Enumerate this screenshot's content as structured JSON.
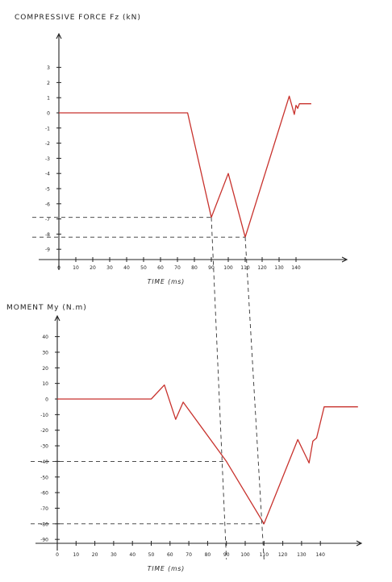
{
  "chart_data": [
    {
      "type": "line",
      "title": "COMPRESSIVE FORCE Fz (kN)",
      "xlabel": "TIME (ms)",
      "ylabel": "",
      "x_ticks": [
        "0",
        "10",
        "20",
        "30",
        "40",
        "50",
        "60",
        "70",
        "80",
        "90",
        "100",
        "110",
        "120",
        "130",
        "140"
      ],
      "y_ticks": [
        "3",
        "2",
        "1",
        "0",
        "-1",
        "-2",
        "-3",
        "-4",
        "-5",
        "-6",
        "-7",
        "-8",
        "-9"
      ],
      "xlim": [
        0,
        150
      ],
      "ylim": [
        -9.5,
        4
      ],
      "series": [
        {
          "color": "#c8322d",
          "x": [
            0,
            76,
            90,
            100,
            110,
            136,
            139,
            140,
            141,
            142,
            149
          ],
          "y": [
            0,
            0,
            -6.9,
            -4.0,
            -8.2,
            1.1,
            -0.1,
            0.5,
            0.3,
            0.6,
            0.6
          ]
        }
      ],
      "guides": [
        {
          "y": -6.9,
          "x": 90
        },
        {
          "y": -8.2,
          "x": 110
        }
      ],
      "grid": false,
      "legend": "none"
    },
    {
      "type": "line",
      "title": "MOMENT My (N.m)",
      "xlabel": "TIME (ms)",
      "ylabel": "",
      "x_ticks": [
        "0",
        "10",
        "20",
        "30",
        "40",
        "50",
        "60",
        "70",
        "80",
        "90",
        "100",
        "110",
        "120",
        "130",
        "140"
      ],
      "y_ticks": [
        "40",
        "30",
        "20",
        "10",
        "0",
        "-10",
        "-20",
        "-30",
        "-40",
        "-50",
        "-60",
        "-70",
        "-80",
        "-90"
      ],
      "xlim": [
        0,
        160
      ],
      "ylim": [
        -95,
        48
      ],
      "series": [
        {
          "color": "#c8322d",
          "x": [
            0,
            50,
            57,
            63,
            67,
            90,
            110,
            128,
            134,
            136,
            138,
            142,
            160
          ],
          "y": [
            0,
            0,
            9,
            -13,
            -2,
            -40,
            -80,
            -26,
            -41,
            -27,
            -25,
            -5,
            -5
          ]
        }
      ],
      "guides": [
        {
          "y": -40,
          "x": 90
        },
        {
          "y": -80,
          "x": 110
        }
      ],
      "grid": false,
      "legend": "none"
    }
  ]
}
